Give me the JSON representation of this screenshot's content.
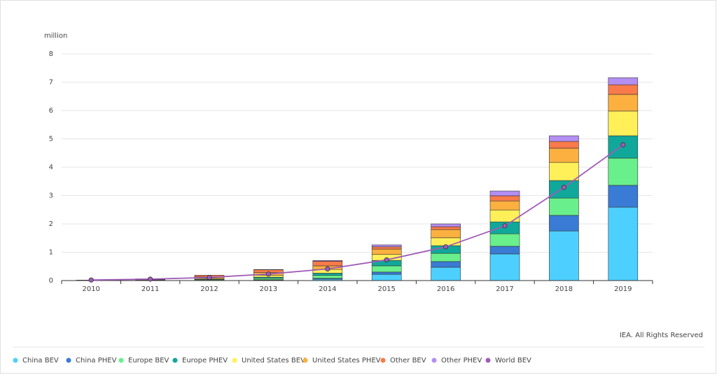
{
  "chart_data": {
    "type": "bar",
    "stacked": true,
    "y_unit": "million",
    "source": "IEA. All Rights Reserved",
    "categories": [
      "2010",
      "2011",
      "2012",
      "2013",
      "2014",
      "2015",
      "2016",
      "2017",
      "2018",
      "2019"
    ],
    "ylim": [
      0,
      8
    ],
    "yticks": [
      0,
      1,
      2,
      3,
      4,
      5,
      6,
      7,
      8
    ],
    "grid": true,
    "legend": "bottom",
    "series": [
      {
        "name": "China BEV",
        "color": "#4dd0ff",
        "values": [
          0.002,
          0.005,
          0.01,
          0.02,
          0.05,
          0.22,
          0.47,
          0.94,
          1.75,
          2.59
        ]
      },
      {
        "name": "China PHEV",
        "color": "#3a7bd5",
        "values": [
          0,
          0,
          0,
          0.01,
          0.03,
          0.08,
          0.2,
          0.27,
          0.55,
          0.77
        ]
      },
      {
        "name": "Europe BEV",
        "color": "#69f08c",
        "values": [
          0.002,
          0.01,
          0.02,
          0.05,
          0.1,
          0.22,
          0.29,
          0.44,
          0.61,
          0.96
        ]
      },
      {
        "name": "Europe PHEV",
        "color": "#10a89a",
        "values": [
          0,
          0.005,
          0.02,
          0.04,
          0.08,
          0.19,
          0.27,
          0.42,
          0.62,
          0.79
        ]
      },
      {
        "name": "United States BEV",
        "color": "#fff05a",
        "values": [
          0.002,
          0.01,
          0.03,
          0.07,
          0.13,
          0.21,
          0.28,
          0.42,
          0.64,
          0.87
        ]
      },
      {
        "name": "United States PHEV",
        "color": "#fbb040",
        "values": [
          0,
          0.01,
          0.05,
          0.09,
          0.13,
          0.19,
          0.29,
          0.32,
          0.5,
          0.59
        ]
      },
      {
        "name": "Other BEV",
        "color": "#f97a4a",
        "values": [
          0.01,
          0.02,
          0.06,
          0.1,
          0.16,
          0.08,
          0.1,
          0.18,
          0.24,
          0.34
        ]
      },
      {
        "name": "Other PHEV",
        "color": "#b38ef3",
        "values": [
          0,
          0,
          0,
          0.01,
          0.03,
          0.07,
          0.1,
          0.17,
          0.2,
          0.25
        ]
      },
      {
        "name": "World BEV",
        "color": "#a05cb8",
        "type": "line",
        "values": [
          0.02,
          0.05,
          0.11,
          0.23,
          0.41,
          0.73,
          1.19,
          1.93,
          3.29,
          4.79
        ]
      }
    ]
  }
}
